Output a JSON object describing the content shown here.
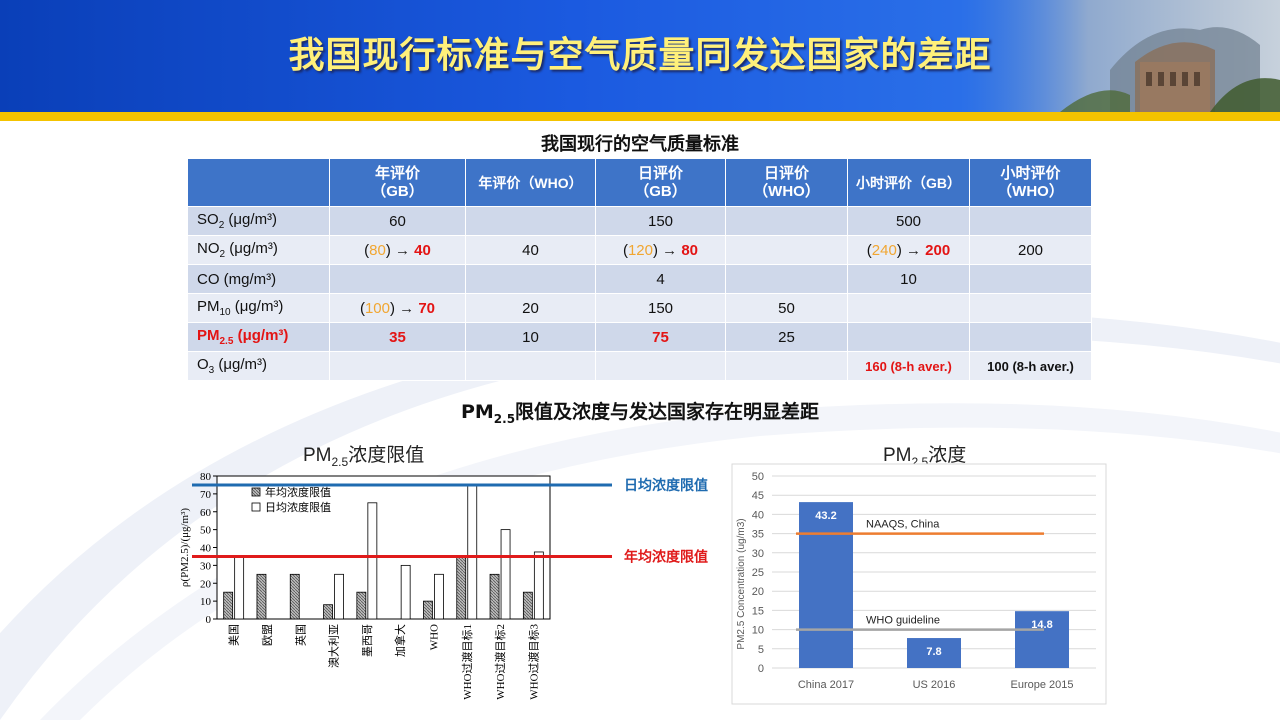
{
  "slide": {
    "title": "我国现行标准与空气质量同发达国家的差距",
    "table_title": "我国现行的空气质量标准",
    "section_title_pre": "PM",
    "section_title_sub": "2.5",
    "section_title_post": "限值及浓度与发达国家存在明显差距"
  },
  "table": {
    "headers": [
      "年评价\n（GB）",
      "年评价（WHO）",
      "日评价\n（GB）",
      "日评价\n（WHO）",
      "小时评价（GB）",
      "小时评价\n（WHO）"
    ],
    "rows": [
      {
        "label": "SO",
        "sub": "2",
        "unit": " (μg/m³)",
        "cells": [
          "60",
          "",
          "150",
          "",
          "500",
          ""
        ]
      },
      {
        "label": "NO",
        "sub": "2",
        "unit": " (μg/m³)",
        "cells": [
          "(80) → 40",
          "40",
          "(120) → 80",
          "",
          "(240) → 200",
          "200"
        ]
      },
      {
        "label": "CO",
        "sub": "",
        "unit": " (mg/m³)",
        "cells": [
          "",
          "",
          "4",
          "",
          "10",
          ""
        ]
      },
      {
        "label": "PM",
        "sub": "10",
        "unit": " (μg/m³)",
        "cells": [
          "(100) → 70",
          "20",
          "150",
          "50",
          "",
          ""
        ]
      },
      {
        "label": "PM",
        "sub": "2.5",
        "unit": " (μg/m³)",
        "cells": [
          "35",
          "10",
          "75",
          "25",
          "",
          ""
        ]
      },
      {
        "label": "O",
        "sub": "3",
        "unit": " (μg/m³)",
        "cells": [
          "",
          "",
          "",
          "",
          "160 (8-h aver.)",
          "100 (8-h aver.)"
        ]
      }
    ]
  },
  "chart_data": [
    {
      "type": "bar",
      "title": "PM2.5浓度限值",
      "ylabel": "ρ(PM2.5)/(μg/m³)",
      "ylim": [
        0,
        80
      ],
      "yticks": [
        0,
        10,
        20,
        30,
        40,
        50,
        60,
        70,
        80
      ],
      "categories": [
        "美国",
        "欧盟",
        "英国",
        "澳大利亚",
        "墨西哥",
        "加拿大",
        "WHO",
        "WHO过渡目标1",
        "WHO过渡目标2",
        "WHO过渡目标3"
      ],
      "series": [
        {
          "name": "年均浓度限值",
          "values": [
            15,
            25,
            25,
            8,
            15,
            null,
            10,
            35,
            25,
            15
          ]
        },
        {
          "name": "日均浓度限值",
          "values": [
            35,
            null,
            null,
            25,
            65,
            30,
            25,
            75,
            50,
            37.5
          ]
        }
      ],
      "reference_lines": [
        {
          "label": "日均浓度限值",
          "value": 75,
          "color": "#1f6bb0"
        },
        {
          "label": "年均浓度限值",
          "value": 35,
          "color": "#e01b1b"
        }
      ]
    },
    {
      "type": "bar",
      "title": "PM2.5浓度",
      "ylabel": "PM2.5 Concentration (ug/m3)",
      "ylim": [
        0,
        50
      ],
      "yticks": [
        0,
        5,
        10,
        15,
        20,
        25,
        30,
        35,
        40,
        45,
        50
      ],
      "categories": [
        "China 2017",
        "US 2016",
        "Europe 2015"
      ],
      "values": [
        43.2,
        7.8,
        14.8
      ],
      "value_labels": [
        "43.2",
        "7.8",
        "14.8"
      ],
      "bar_color": "#4472c4",
      "reference_lines": [
        {
          "label": "NAAQS, China",
          "value": 35,
          "color": "#ed7d31"
        },
        {
          "label": "WHO guideline",
          "value": 10,
          "color": "#a5a5a5"
        }
      ]
    }
  ]
}
